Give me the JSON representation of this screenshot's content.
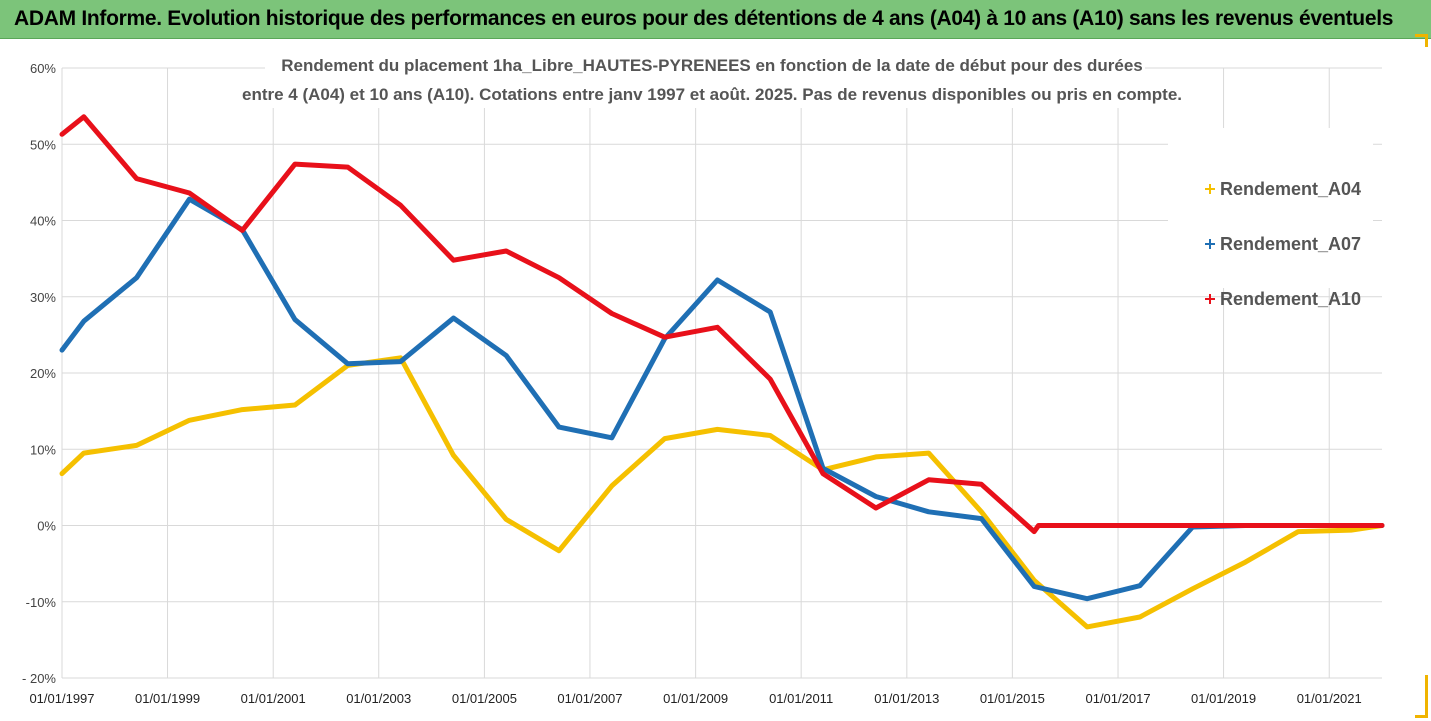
{
  "banner": {
    "title": "ADAM Informe. Evolution historique des performances en euros pour des détentions de 4 ans (A04) à 10 ans (A10) sans les revenus éventuels"
  },
  "colors": {
    "banner_bg": "#7cc47a",
    "Rendement_A04": "#f5c000",
    "Rendement_A07": "#1f6fb4",
    "Rendement_A10": "#e8101a",
    "accent_corner": "#f0b400"
  },
  "chart_data": {
    "type": "line",
    "title": "",
    "subtitle_lines": [
      "Rendement du placement 1ha_Libre_HAUTES-PYRENEES en fonction de la date de début pour des durées",
      "entre 4 (A04) et 10 ans (A10). Cotations entre janv 1997 et août. 2025. Pas de revenus disponibles ou pris en compte."
    ],
    "xlabel": "",
    "ylabel": "",
    "x_range": [
      "1997-01-01",
      "2022-01-01"
    ],
    "ylim": [
      -20,
      60
    ],
    "y_ticks": [
      -20,
      -10,
      0,
      10,
      20,
      30,
      40,
      50,
      60
    ],
    "y_tick_labels": [
      "- 20%",
      "-10%",
      "0%",
      "10%",
      "20%",
      "30%",
      "40%",
      "50%",
      "60%"
    ],
    "x_tick_dates": [
      "1997-01-01",
      "1999-01-01",
      "2001-01-01",
      "2003-01-01",
      "2005-01-01",
      "2007-01-01",
      "2009-01-01",
      "2011-01-01",
      "2013-01-01",
      "2015-01-01",
      "2017-01-01",
      "2019-01-01",
      "2021-01-01"
    ],
    "x_tick_labels": [
      "01/01/1997",
      "01/01/1999",
      "01/01/2001",
      "01/01/2003",
      "01/01/2005",
      "01/01/2007",
      "01/01/2009",
      "01/01/2011",
      "01/01/2013",
      "01/01/2015",
      "01/01/2017",
      "01/01/2019",
      "01/01/2021"
    ],
    "grid": true,
    "legend_position": "right",
    "series": [
      {
        "name": "Rendement_A04",
        "points": [
          [
            "1997-01-01",
            6.8
          ],
          [
            "1997-06-01",
            9.5
          ],
          [
            "1998-06-01",
            10.5
          ],
          [
            "1999-06-01",
            13.8
          ],
          [
            "2000-06-01",
            15.2
          ],
          [
            "2001-06-01",
            15.8
          ],
          [
            "2002-06-01",
            21.0
          ],
          [
            "2003-06-01",
            22.0
          ],
          [
            "2004-06-01",
            9.2
          ],
          [
            "2005-06-01",
            0.8
          ],
          [
            "2006-06-01",
            -3.3
          ],
          [
            "2007-06-01",
            5.2
          ],
          [
            "2008-06-01",
            11.4
          ],
          [
            "2009-06-01",
            12.6
          ],
          [
            "2010-06-01",
            11.8
          ],
          [
            "2011-06-01",
            7.3
          ],
          [
            "2012-06-01",
            9.0
          ],
          [
            "2013-06-01",
            9.5
          ],
          [
            "2014-06-01",
            1.8
          ],
          [
            "2015-06-01",
            -7.2
          ],
          [
            "2016-06-01",
            -13.3
          ],
          [
            "2017-06-01",
            -12.0
          ],
          [
            "2018-06-01",
            -8.3
          ],
          [
            "2019-06-01",
            -4.8
          ],
          [
            "2020-06-01",
            -0.8
          ],
          [
            "2021-06-01",
            -0.6
          ],
          [
            "2022-01-01",
            0.0
          ]
        ]
      },
      {
        "name": "Rendement_A07",
        "points": [
          [
            "1997-01-01",
            23.0
          ],
          [
            "1997-06-01",
            26.8
          ],
          [
            "1998-06-01",
            32.5
          ],
          [
            "1999-06-01",
            42.8
          ],
          [
            "2000-06-01",
            38.8
          ],
          [
            "2001-06-01",
            27.0
          ],
          [
            "2002-06-01",
            21.2
          ],
          [
            "2003-06-01",
            21.5
          ],
          [
            "2004-06-01",
            27.2
          ],
          [
            "2005-06-01",
            22.3
          ],
          [
            "2006-06-01",
            12.9
          ],
          [
            "2007-06-01",
            11.5
          ],
          [
            "2008-06-01",
            24.5
          ],
          [
            "2009-06-01",
            32.2
          ],
          [
            "2010-06-01",
            28.0
          ],
          [
            "2011-06-01",
            7.5
          ],
          [
            "2012-06-01",
            3.8
          ],
          [
            "2013-06-01",
            1.8
          ],
          [
            "2014-06-01",
            0.9
          ],
          [
            "2015-06-01",
            -8.0
          ],
          [
            "2016-06-01",
            -9.6
          ],
          [
            "2017-06-01",
            -7.9
          ],
          [
            "2018-06-01",
            -0.2
          ],
          [
            "2019-06-01",
            0.0
          ],
          [
            "2022-01-01",
            0.0
          ]
        ]
      },
      {
        "name": "Rendement_A10",
        "points": [
          [
            "1997-01-01",
            51.3
          ],
          [
            "1997-06-01",
            53.6
          ],
          [
            "1998-06-01",
            45.5
          ],
          [
            "1999-06-01",
            43.6
          ],
          [
            "2000-06-01",
            38.7
          ],
          [
            "2001-06-01",
            47.4
          ],
          [
            "2002-06-01",
            47.0
          ],
          [
            "2003-06-01",
            42.0
          ],
          [
            "2004-06-01",
            34.8
          ],
          [
            "2005-06-01",
            36.0
          ],
          [
            "2006-06-01",
            32.5
          ],
          [
            "2007-06-01",
            27.8
          ],
          [
            "2008-06-01",
            24.7
          ],
          [
            "2009-06-01",
            26.0
          ],
          [
            "2010-06-01",
            19.2
          ],
          [
            "2011-06-01",
            6.8
          ],
          [
            "2012-06-01",
            2.3
          ],
          [
            "2013-06-01",
            6.0
          ],
          [
            "2014-06-01",
            5.4
          ],
          [
            "2015-06-01",
            -0.8
          ],
          [
            "2015-07-01",
            0.0
          ],
          [
            "2022-01-01",
            0.0
          ]
        ]
      }
    ]
  }
}
